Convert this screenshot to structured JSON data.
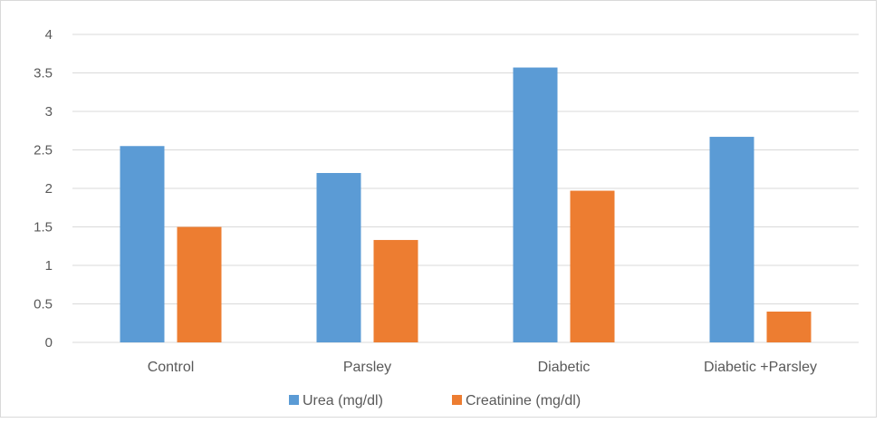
{
  "chart_data": {
    "type": "bar",
    "categories": [
      "Control",
      "Parsley",
      "Diabetic",
      "Diabetic +Parsley"
    ],
    "series": [
      {
        "name": "Urea (mg/dl)",
        "values": [
          2.55,
          2.2,
          3.57,
          2.67
        ],
        "color": "#5b9bd5"
      },
      {
        "name": "Creatinine (mg/dl)",
        "values": [
          1.5,
          1.33,
          1.97,
          0.4
        ],
        "color": "#ed7d31"
      }
    ],
    "yticks": [
      "0",
      "0.5",
      "1",
      "1.5",
      "2",
      "2.5",
      "3",
      "3.5",
      "4"
    ],
    "ylim": [
      0,
      4
    ],
    "grid": true,
    "legend": "bottom",
    "title": "",
    "xlabel": "",
    "ylabel": ""
  }
}
